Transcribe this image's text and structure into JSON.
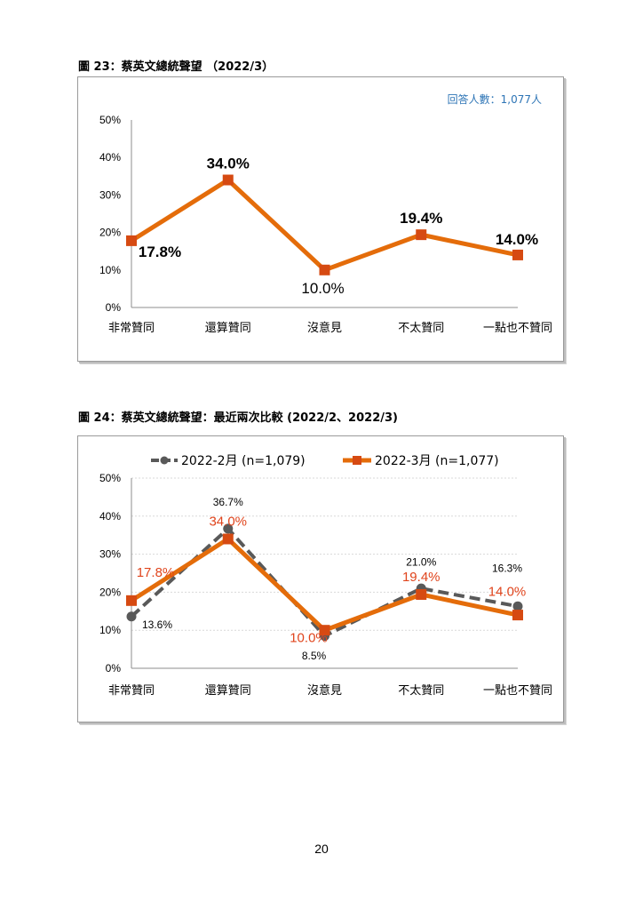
{
  "page_number": "20",
  "figures": [
    {
      "title": "圖 23：蔡英文總統聲望 （2022/3）"
    },
    {
      "title": "圖 24：蔡英文總統聲望：最近兩次比較 (2022/2、2022/3)"
    }
  ],
  "chart_data": [
    {
      "type": "line",
      "title": "圖 23：蔡英文總統聲望 （2022/3）",
      "annotation": "回答人數：1,077人",
      "categories": [
        "非常贊同",
        "還算贊同",
        "沒意見",
        "不太贊同",
        "一點也不贊同"
      ],
      "yticks": [
        "0%",
        "10%",
        "20%",
        "30%",
        "40%",
        "50%"
      ],
      "ylim": [
        0,
        50
      ],
      "grid": false,
      "legend": "none",
      "series": [
        {
          "values": [
            17.8,
            34.0,
            10.0,
            19.4,
            14.0
          ],
          "labels": [
            "17.8%",
            "34.0%",
            "10.0%",
            "19.4%",
            "14.0%"
          ],
          "color": "#E46C0A",
          "marker_color": "#D64A12"
        }
      ]
    },
    {
      "type": "line",
      "title": "圖 24：蔡英文總統聲望：最近兩次比較 (2022/2、2022/3)",
      "categories": [
        "非常贊同",
        "還算贊同",
        "沒意見",
        "不太贊同",
        "一點也不贊同"
      ],
      "yticks": [
        "0%",
        "10%",
        "20%",
        "30%",
        "40%",
        "50%"
      ],
      "ylim": [
        0,
        50
      ],
      "grid": true,
      "legend": "top",
      "series": [
        {
          "name": "2022-2月 (n=1,079)",
          "values": [
            13.6,
            36.7,
            8.5,
            21.0,
            16.3
          ],
          "labels": [
            "13.6%",
            "36.7%",
            "8.5%",
            "21.0%",
            "16.3%"
          ],
          "color": "#595959",
          "style": "dashed",
          "marker": "circle"
        },
        {
          "name": "2022-3月 (n=1,077)",
          "values": [
            17.8,
            34.0,
            10.0,
            19.4,
            14.0
          ],
          "labels": [
            "17.8%",
            "34.0%",
            "10.0%",
            "19.4%",
            "14.0%"
          ],
          "color": "#E46C0A",
          "marker_color": "#D64A12",
          "style": "solid",
          "marker": "square"
        }
      ]
    }
  ]
}
